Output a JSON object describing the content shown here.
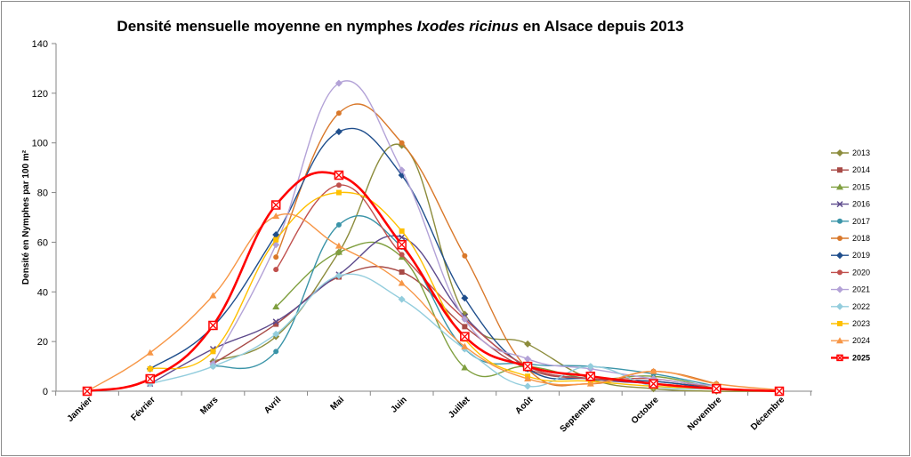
{
  "chart_data": {
    "type": "line",
    "title_parts": [
      {
        "text": "Densité mensuelle moyenne en nymphes ",
        "italic": false
      },
      {
        "text": "Ixodes ricinus",
        "italic": true
      },
      {
        "text": " en Alsace depuis 2013",
        "italic": false
      }
    ],
    "ylabel": "Densité en Nymphes par 100 m²",
    "xlabel": "",
    "categories": [
      "Janvier",
      "Février",
      "Mars",
      "Avril",
      "Mai",
      "Juin",
      "Juillet",
      "Août",
      "Septembre",
      "Octobre",
      "Novembre",
      "Décembre"
    ],
    "ylim": [
      0,
      140
    ],
    "yticks": [
      "0",
      "20",
      "40",
      "60",
      "80",
      "100",
      "120",
      "140"
    ],
    "smooth": true,
    "grid": false,
    "legend_position": "right",
    "series": [
      {
        "name": "2013",
        "color": "#8c8c3c",
        "marker": "diamond",
        "values": [
          null,
          null,
          12,
          22,
          56,
          99,
          31,
          19,
          5,
          1,
          0,
          0
        ]
      },
      {
        "name": "2014",
        "color": "#a84a46",
        "marker": "square",
        "values": [
          null,
          null,
          11,
          27,
          46,
          48,
          26,
          9,
          5,
          4,
          1,
          null
        ]
      },
      {
        "name": "2015",
        "color": "#7f9f3f",
        "marker": "triangle",
        "values": [
          null,
          null,
          null,
          34,
          56,
          54,
          9.5,
          10,
          5,
          6,
          1,
          null
        ]
      },
      {
        "name": "2016",
        "color": "#5d4a8c",
        "marker": "x",
        "values": [
          null,
          3,
          17,
          28,
          47,
          62,
          30,
          10,
          5,
          3,
          1,
          null
        ]
      },
      {
        "name": "2017",
        "color": "#3a94a8",
        "marker": "circle",
        "values": [
          null,
          null,
          10,
          16,
          67,
          58,
          17,
          11,
          10,
          7,
          2,
          null
        ]
      },
      {
        "name": "2018",
        "color": "#d9782a",
        "marker": "circle",
        "values": [
          null,
          null,
          null,
          54,
          112,
          100,
          54.5,
          9,
          3,
          8,
          3,
          null
        ]
      },
      {
        "name": "2019",
        "color": "#1f4e8c",
        "marker": "diamond",
        "values": [
          null,
          9,
          26,
          63,
          104.5,
          87,
          37.5,
          9,
          5,
          4,
          1,
          null
        ]
      },
      {
        "name": "2020",
        "color": "#c0504d",
        "marker": "circle",
        "values": [
          null,
          null,
          null,
          49,
          83,
          55,
          29,
          10,
          5,
          5,
          1,
          null
        ]
      },
      {
        "name": "2021",
        "color": "#b3a2d7",
        "marker": "diamond",
        "values": [
          null,
          null,
          11,
          59,
          124,
          89,
          29,
          13,
          9,
          5,
          2,
          null
        ]
      },
      {
        "name": "2022",
        "color": "#93cddd",
        "marker": "diamond",
        "values": [
          null,
          3,
          10,
          23,
          46.5,
          37,
          17,
          2,
          10,
          2,
          1,
          null
        ]
      },
      {
        "name": "2023",
        "color": "#ffc000",
        "marker": "square",
        "values": [
          null,
          9,
          16,
          61,
          80,
          64.5,
          21,
          6,
          4,
          2,
          1,
          null
        ]
      },
      {
        "name": "2024",
        "color": "#f79646",
        "marker": "triangle",
        "values": [
          0,
          15.5,
          38.5,
          70.5,
          58.5,
          43.5,
          18,
          5,
          3,
          8,
          3,
          0.5
        ]
      },
      {
        "name": "2025",
        "color": "#ff0000",
        "marker": "squarex",
        "values": [
          0,
          5,
          26.5,
          75,
          87,
          59,
          22,
          10,
          6,
          3,
          1,
          0
        ]
      }
    ]
  }
}
